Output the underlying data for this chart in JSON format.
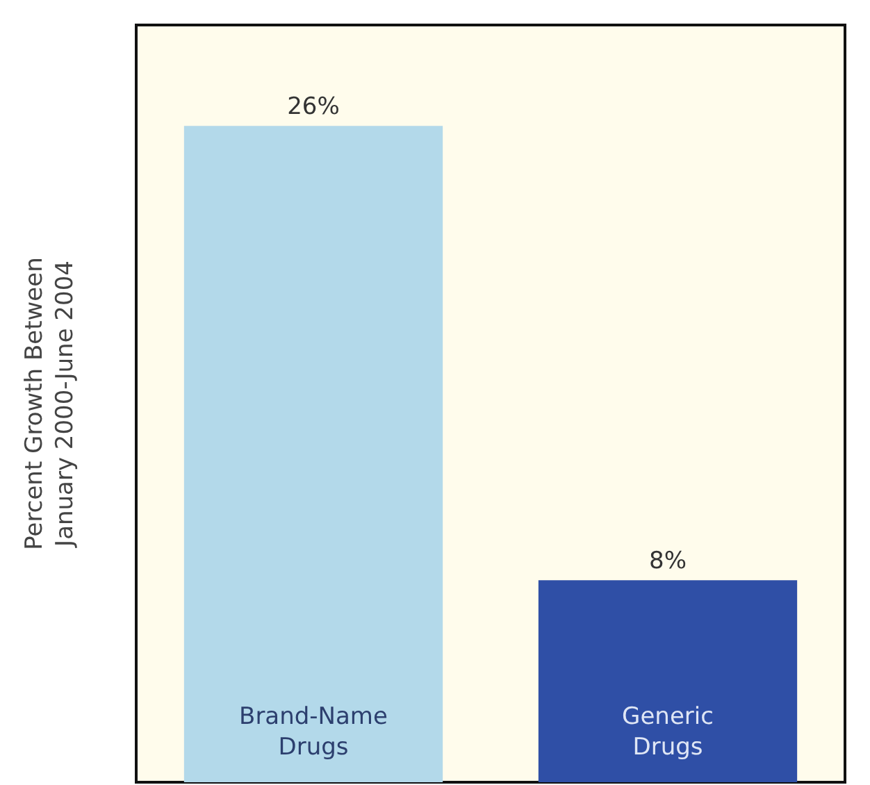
{
  "chart_data": {
    "type": "bar",
    "ylabel": "Percent Growth Between January 2000-June 2004",
    "categories": [
      "Brand-Name Drugs",
      "Generic Drugs"
    ],
    "values": [
      26,
      8
    ],
    "colors": [
      "#b3d9ea",
      "#2f4fa6"
    ],
    "value_labels": [
      "26%",
      "8%"
    ],
    "grid": false
  }
}
